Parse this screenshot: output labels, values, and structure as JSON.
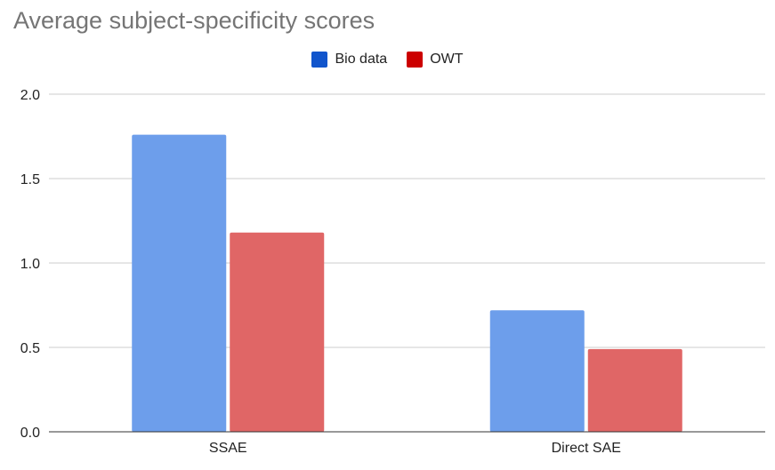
{
  "chart_data": {
    "type": "bar",
    "title": "Average subject-specificity scores",
    "categories": [
      "SSAE",
      "Direct SAE"
    ],
    "series": [
      {
        "name": "Bio data",
        "values": [
          1.76,
          0.72
        ],
        "color": "#6d9eeb"
      },
      {
        "name": "OWT",
        "values": [
          1.18,
          0.49
        ],
        "color": "#e06666"
      }
    ],
    "legend_colors": [
      "#1155cc",
      "#cc0000"
    ],
    "yticks": [
      "0.0",
      "0.5",
      "1.0",
      "1.5",
      "2.0"
    ],
    "ylim": [
      0,
      2.0
    ],
    "grid": true,
    "legend_position": "top-center",
    "xlabel": "",
    "ylabel": ""
  }
}
